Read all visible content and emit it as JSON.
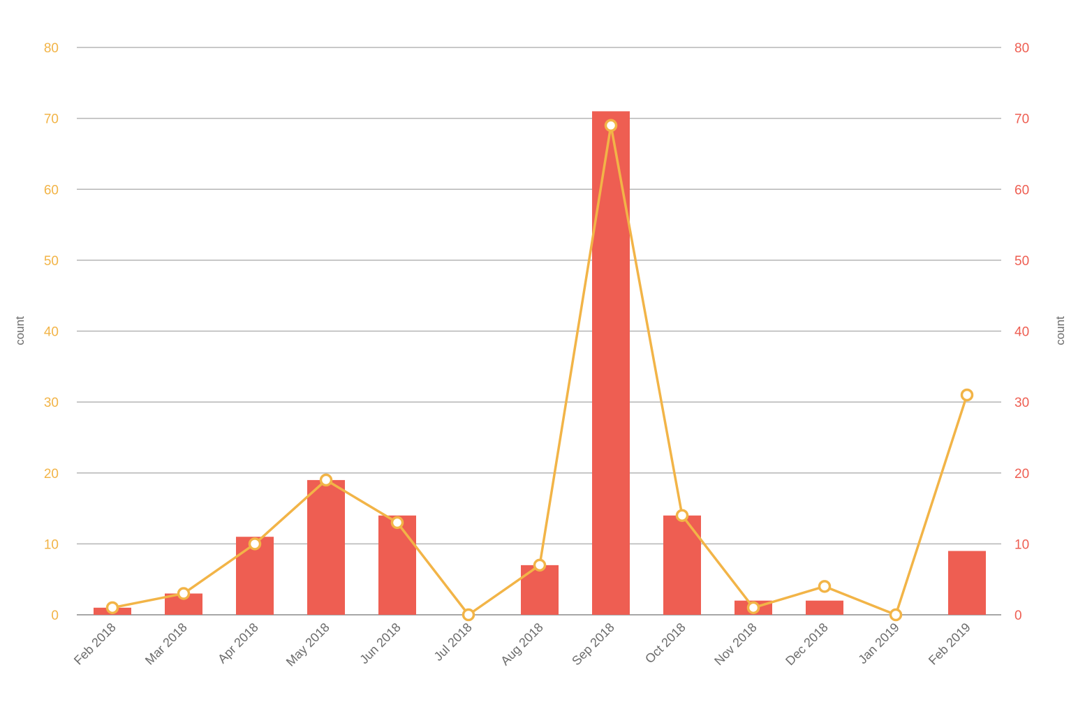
{
  "chart_data": {
    "type": "bar",
    "categories": [
      "Feb 2018",
      "Mar 2018",
      "Apr 2018",
      "May 2018",
      "Jun 2018",
      "Jul 2018",
      "Aug 2018",
      "Sep 2018",
      "Oct 2018",
      "Nov 2018",
      "Dec 2018",
      "Jan 2019",
      "Feb 2019"
    ],
    "series": [
      {
        "type": "bar",
        "axis": "right",
        "color": "#ee5e52",
        "values": [
          1,
          3,
          11,
          19,
          14,
          0,
          7,
          71,
          14,
          2,
          2,
          0,
          9
        ]
      },
      {
        "type": "line",
        "axis": "left",
        "color": "#f2b447",
        "values": [
          1,
          3,
          10,
          19,
          13,
          0,
          7,
          69,
          14,
          1,
          4,
          0,
          31
        ]
      }
    ],
    "ylabel_left": "count",
    "ylabel_right": "count",
    "ylim_left": [
      0,
      80
    ],
    "ylim_right": [
      0,
      80
    ],
    "yticks_left": [
      "0",
      "10",
      "20",
      "30",
      "40",
      "50",
      "60",
      "70",
      "80"
    ],
    "yticks_right": [
      "0",
      "10",
      "20",
      "30",
      "40",
      "50",
      "60",
      "70",
      "80"
    ],
    "grid": true,
    "legend": "none"
  }
}
